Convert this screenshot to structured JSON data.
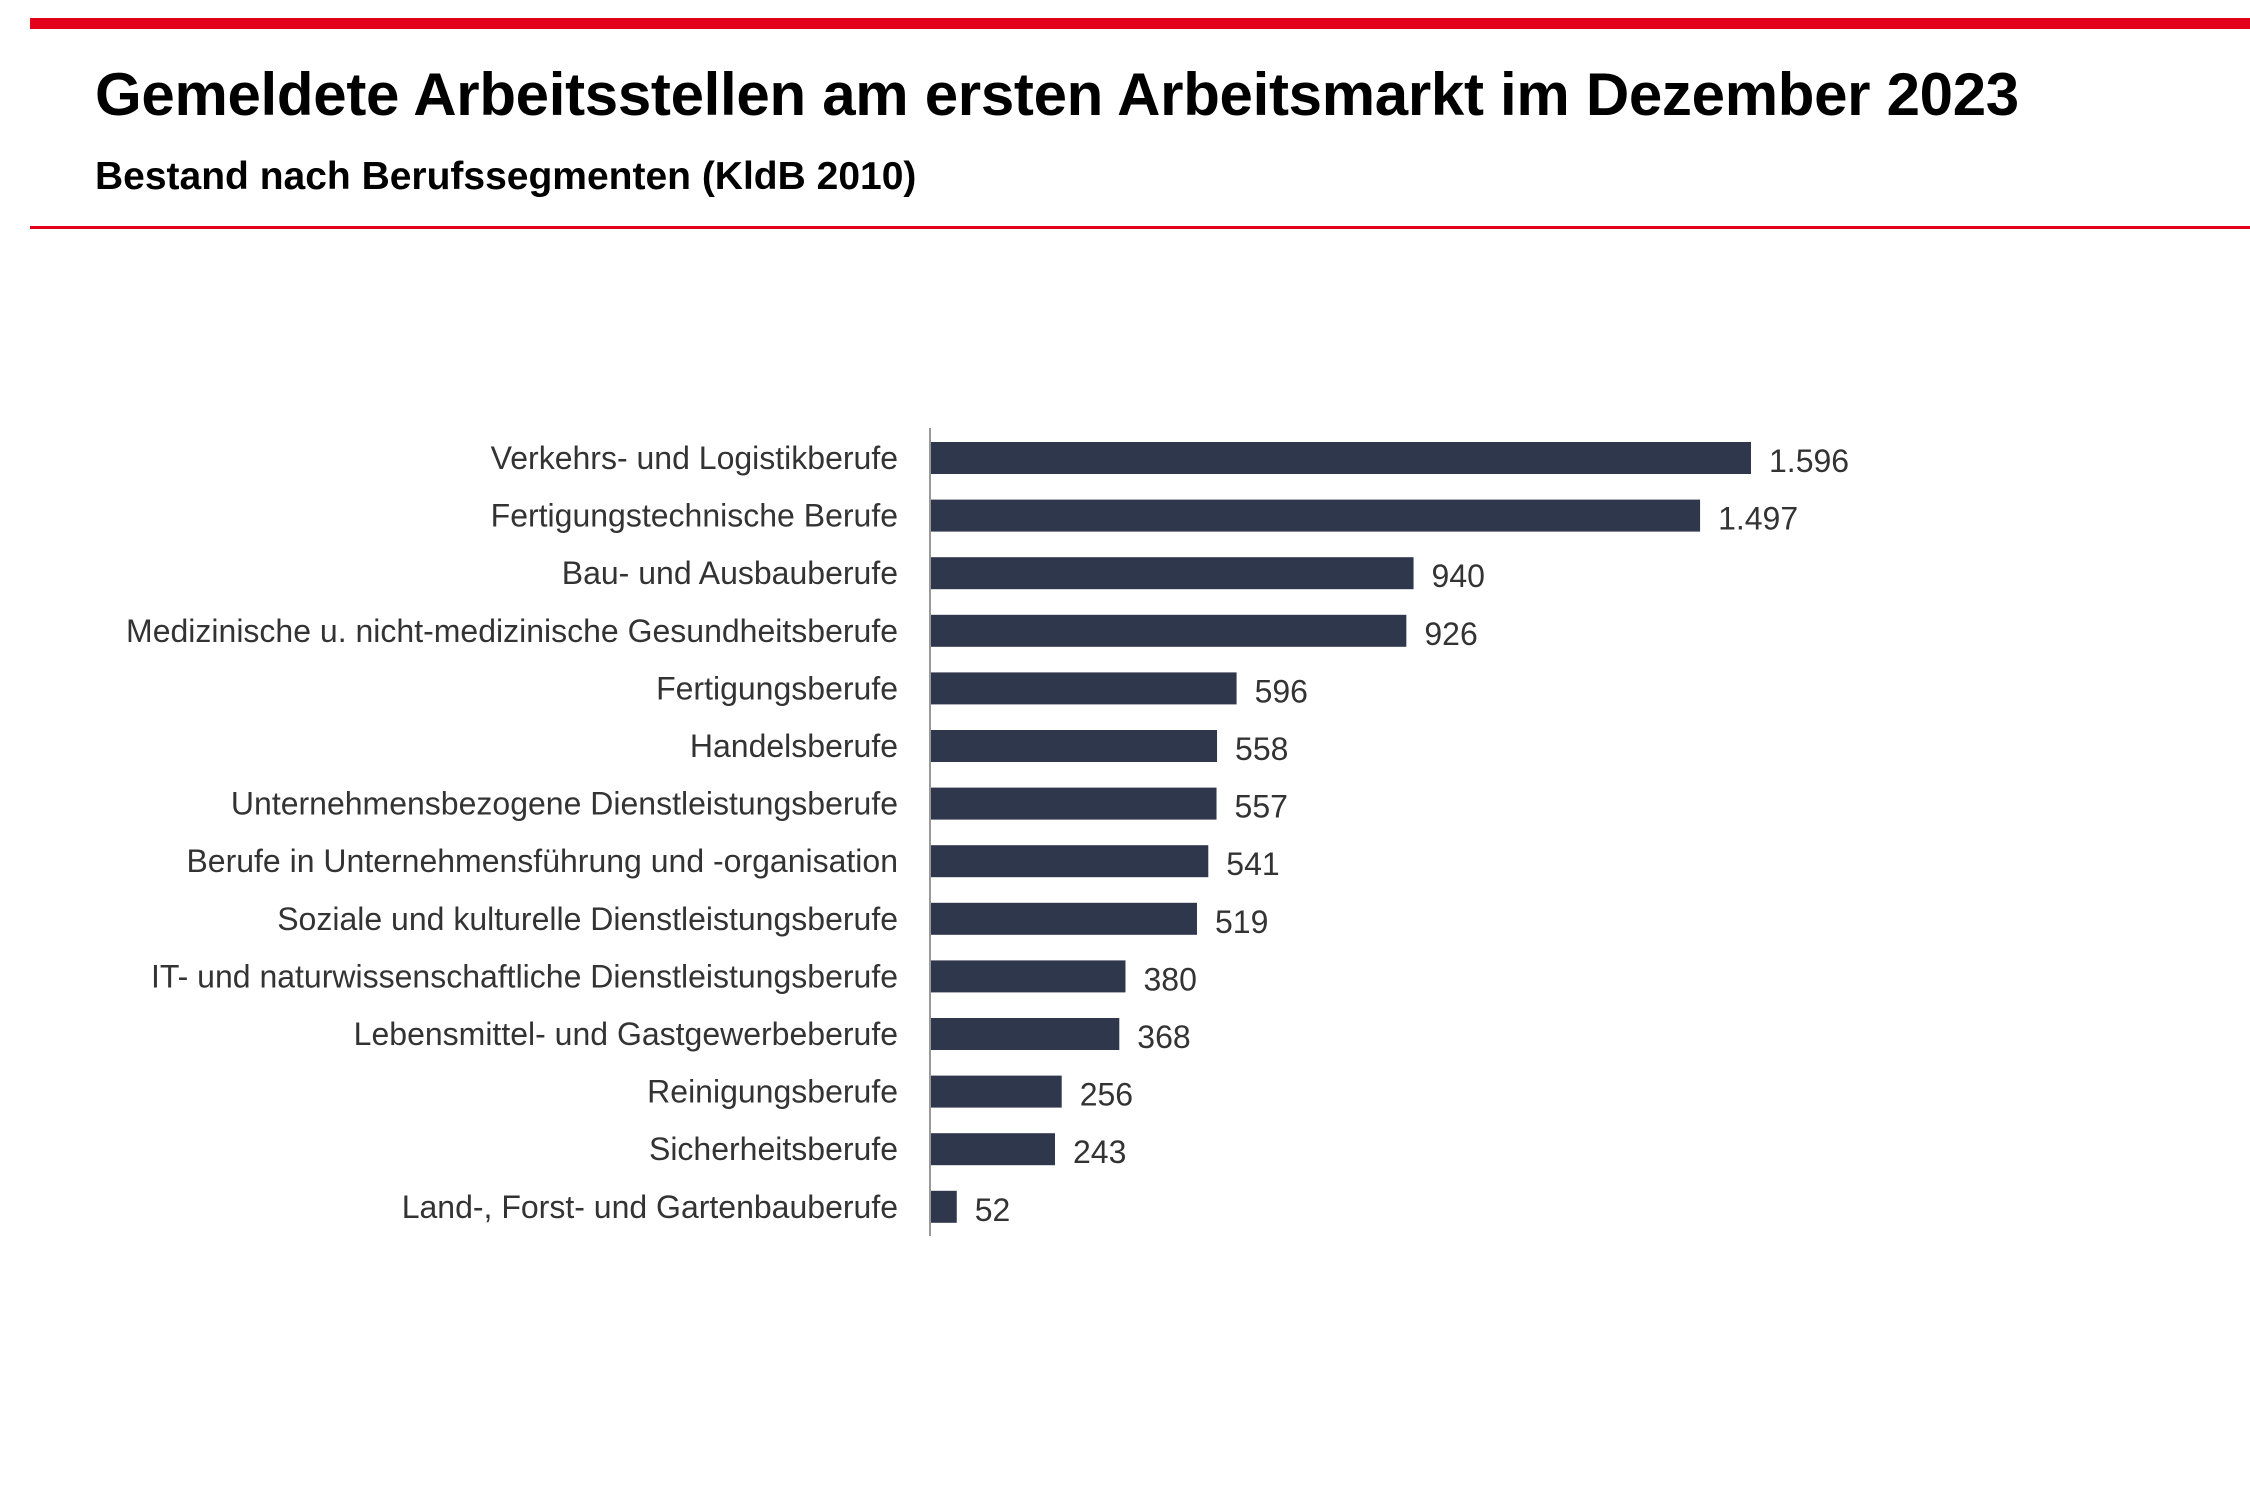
{
  "header": {
    "title": "Gemeldete Arbeitsstellen am ersten Arbeitsmarkt im Dezember 2023",
    "subtitle": "Bestand nach Berufssegmenten (KldB 2010)"
  },
  "colors": {
    "accent": "#e2001a",
    "bar": "#2e374b",
    "text": "#333333"
  },
  "chart_data": {
    "type": "bar",
    "orientation": "horizontal",
    "title": "Gemeldete Arbeitsstellen am ersten Arbeitsmarkt im Dezember 2023",
    "subtitle": "Bestand nach Berufssegmenten (KldB 2010)",
    "xlabel": "",
    "ylabel": "",
    "grid": false,
    "xlim": [
      0,
      1596
    ],
    "categories": [
      "Verkehrs- und Logistikberufe",
      "Fertigungstechnische Berufe",
      "Bau- und Ausbauberufe",
      "Medizinische u. nicht-medizinische Gesundheitsberufe",
      "Fertigungsberufe",
      "Handelsberufe",
      "Unternehmensbezogene Dienstleistungsberufe",
      "Berufe in Unternehmensführung und -organisation",
      "Soziale und kulturelle Dienstleistungsberufe",
      "IT- und naturwissenschaftliche Dienstleistungsberufe",
      "Lebensmittel- und Gastgewerbeberufe",
      "Reinigungsberufe",
      "Sicherheitsberufe",
      "Land-, Forst- und Gartenbauberufe"
    ],
    "values": [
      1596,
      1497,
      940,
      926,
      596,
      558,
      557,
      541,
      519,
      380,
      368,
      256,
      243,
      52
    ],
    "data_labels": [
      "1.596",
      "1.497",
      "940",
      "926",
      "596",
      "558",
      "557",
      "541",
      "519",
      "380",
      "368",
      "256",
      "243",
      "52"
    ]
  }
}
